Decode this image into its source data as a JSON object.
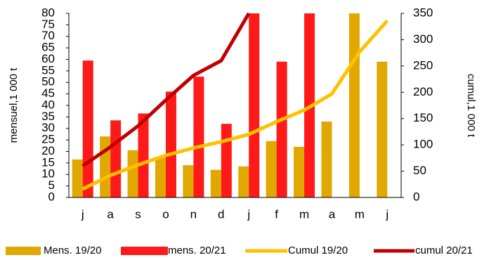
{
  "chart_data": {
    "type": "bar",
    "categories": [
      "j",
      "a",
      "s",
      "o",
      "n",
      "d",
      "j",
      "f",
      "m",
      "a",
      "m",
      "j"
    ],
    "series": [
      {
        "name": "Mens. 19/20",
        "kind": "bar",
        "axis": "left",
        "color": "#e0a800",
        "values": [
          16.5,
          26.5,
          20.5,
          17.5,
          14,
          12,
          13.5,
          24.5,
          22,
          33,
          80,
          59
        ]
      },
      {
        "name": "mens. 20/21",
        "kind": "bar",
        "axis": "left",
        "color": "#ff1a1a",
        "values": [
          59.5,
          33.5,
          36.5,
          46,
          52.5,
          32,
          80,
          59,
          80,
          null,
          null,
          null
        ]
      },
      {
        "name": "Cumul 19/20",
        "kind": "line",
        "axis": "right",
        "color": "#ffc000",
        "values": [
          16,
          42,
          62,
          80,
          94,
          106,
          120,
          144,
          166,
          197,
          277,
          336
        ]
      },
      {
        "name": "cumul 20/21",
        "kind": "line",
        "axis": "right",
        "color": "#c00000",
        "values": [
          60,
          96,
          136,
          185,
          232,
          260,
          350,
          null,
          null,
          null,
          null,
          null
        ]
      }
    ],
    "y_left": {
      "label": "mensuel,1 000 t",
      "min": 0,
      "max": 80,
      "ticks": [
        0,
        5,
        10,
        15,
        20,
        25,
        30,
        35,
        40,
        45,
        50,
        55,
        60,
        65,
        70,
        75,
        80
      ]
    },
    "y_right": {
      "label": "cumul,1 000 t",
      "min": 0,
      "max": 350,
      "ticks": [
        0,
        50,
        100,
        150,
        200,
        250,
        300,
        350
      ]
    },
    "xlabel": "",
    "legend": "bottom",
    "grid": false
  }
}
